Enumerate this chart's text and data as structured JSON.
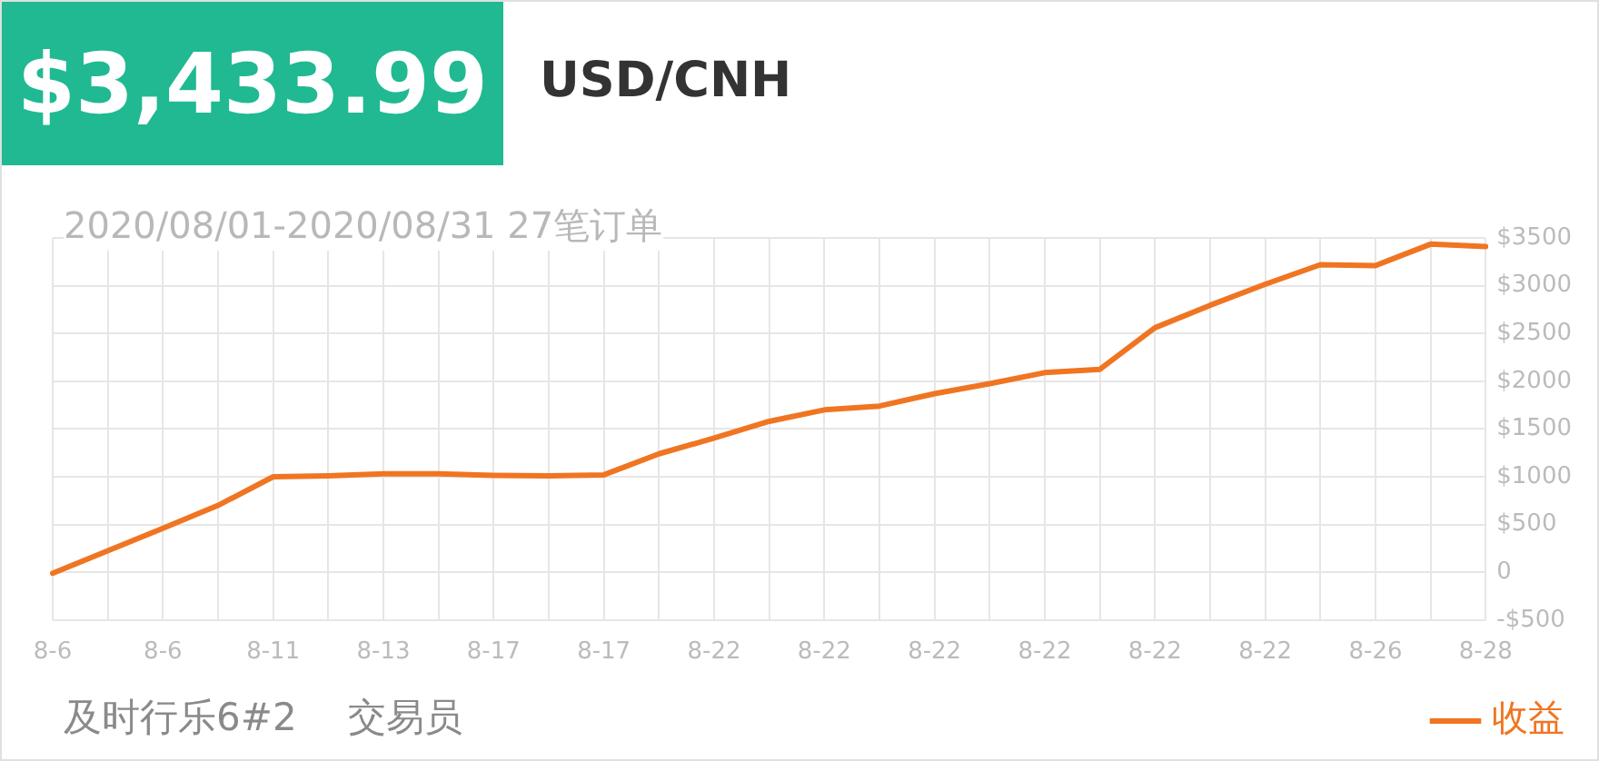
{
  "chart_data": {
    "type": "line",
    "title": "USD/CNH",
    "subtitle": "$3,433.99",
    "annotations": [
      "2020/08/01-2020/08/31 27笔订单",
      "及时行乐6#2",
      "交易员"
    ],
    "categories": [
      "8-6",
      null,
      "8-6",
      null,
      "8-11",
      null,
      "8-13",
      null,
      "8-17",
      null,
      "8-17",
      null,
      "8-22",
      null,
      "8-22",
      null,
      "8-22",
      null,
      "8-22",
      null,
      "8-22",
      null,
      "8-22",
      null,
      "8-26",
      null,
      "8-28"
    ],
    "series": [
      {
        "name": "收益",
        "color": "#f07522",
        "values": [
          -10,
          225,
          460,
          700,
          1000,
          1010,
          1030,
          1030,
          1015,
          1010,
          1020,
          1240,
          1405,
          1580,
          1700,
          1740,
          1870,
          1975,
          2090,
          2125,
          2560,
          2795,
          3015,
          3220,
          3210,
          3435,
          3410
        ]
      }
    ],
    "ylim": [
      -500,
      3500
    ],
    "yticks": [
      {
        "value": -500,
        "label": "-$500"
      },
      {
        "value": 0,
        "label": "0"
      },
      {
        "value": 500,
        "label": "$500"
      },
      {
        "value": 1000,
        "label": "$1000"
      },
      {
        "value": 1500,
        "label": "$1500"
      },
      {
        "value": 2000,
        "label": "$2000"
      },
      {
        "value": 2500,
        "label": "$2500"
      },
      {
        "value": 3000,
        "label": "$3000"
      },
      {
        "value": 3500,
        "label": "$3500"
      }
    ],
    "grid": true,
    "legend": "bottom right",
    "marker": "none",
    "line_style": "solid"
  }
}
